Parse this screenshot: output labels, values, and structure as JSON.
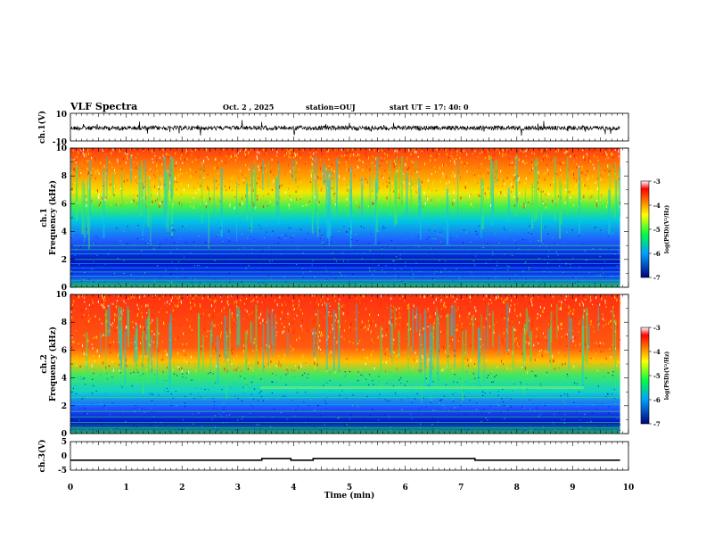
{
  "header": {
    "title": "VLF Spectra",
    "date": "Oct. 2 , 2025",
    "station": "station=OUJ",
    "start": "start  UT =   17: 40: 0"
  },
  "chart_data": [
    {
      "type": "line",
      "panel": "ch1-waveform",
      "ylabel": "ch.1(V)",
      "ylim": [
        -10,
        10
      ],
      "y_ticks": [
        "10",
        "-10"
      ],
      "xlim": [
        0,
        10
      ]
    },
    {
      "type": "heatmap",
      "panel": "ch1-spectrogram",
      "ylabel": "ch.1\nFrequency (kHz)",
      "ylim": [
        0,
        10
      ],
      "y_ticks": [
        "0",
        "2",
        "4",
        "6",
        "8",
        "10"
      ],
      "xlim": [
        0,
        10
      ],
      "colorbar": {
        "label": "log(PSD)(V²/Hz)",
        "ticks": [
          "-3",
          "-4",
          "-5",
          "-6",
          "-7"
        ],
        "range": [
          -7,
          -3
        ]
      }
    },
    {
      "type": "heatmap",
      "panel": "ch2-spectrogram",
      "ylabel": "ch.2\nFrequency (kHz)",
      "ylim": [
        0,
        10
      ],
      "y_ticks": [
        "0",
        "2",
        "4",
        "6",
        "8",
        "10"
      ],
      "xlim": [
        0,
        10
      ],
      "colorbar": {
        "label": "log(PSD)(V²/Hz)",
        "ticks": [
          "-3",
          "-4",
          "-5",
          "-6",
          "-7"
        ],
        "range": [
          -7,
          -3
        ]
      }
    },
    {
      "type": "line",
      "panel": "ch3-signal",
      "ylabel": "ch.3(V)",
      "ylim": [
        -5,
        5
      ],
      "y_ticks": [
        "5",
        "0",
        "-5"
      ],
      "xlim": [
        0,
        10
      ],
      "x": [
        0,
        3.43,
        3.43,
        3.95,
        3.95,
        4.35,
        4.35,
        7.25,
        7.25,
        9.85
      ],
      "y": [
        -1.5,
        -1.5,
        -0.9,
        -0.9,
        -1.5,
        -1.5,
        -0.9,
        -0.9,
        -1.5,
        -1.5
      ]
    }
  ],
  "x_axis": {
    "label": "Time (min)",
    "ticks": [
      "0",
      "1",
      "2",
      "3",
      "4",
      "5",
      "6",
      "7",
      "8",
      "9",
      "10"
    ]
  },
  "colors": {
    "hot": "#ff2a00",
    "blue": "#0020e0",
    "green": "#20e040"
  }
}
